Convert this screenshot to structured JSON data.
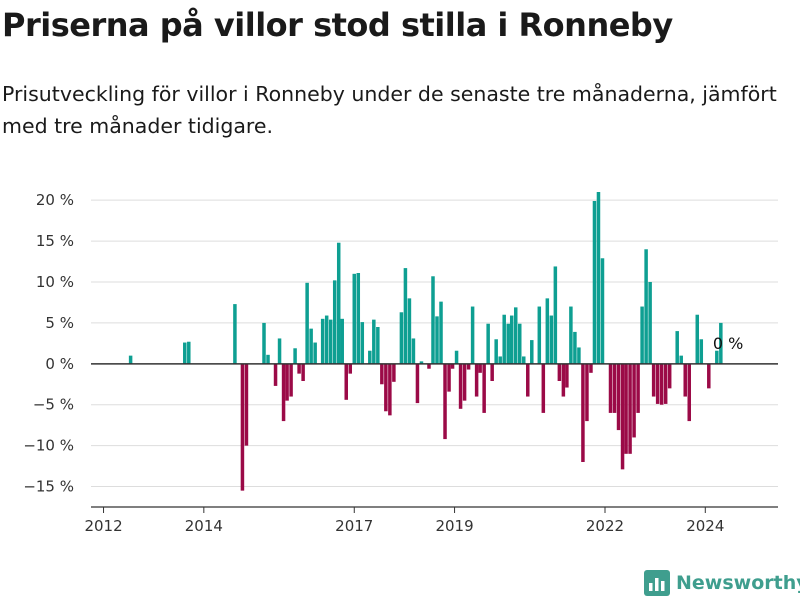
{
  "header": {
    "title": "Priserna på villor stod stilla i Ronneby",
    "subtitle": "Prisutveckling för villor i Ronneby under de senaste tre månaderna, jämfört med tre månader tidigare."
  },
  "brand": {
    "name": "Newsworthy",
    "icon": "bar-chart-logo-icon",
    "color": "#3f9e8e"
  },
  "chart_data": {
    "type": "bar",
    "ylim": [
      -17.5,
      21
    ],
    "yticks": [
      -15,
      -10,
      -5,
      0,
      5,
      10,
      15,
      20
    ],
    "ytick_labels": [
      "−15 %",
      "−10 %",
      "−5 %",
      "0 %",
      "5 %",
      "10 %",
      "15 %",
      "20 %"
    ],
    "xlim": [
      2011.75,
      2025.45
    ],
    "xticks": [
      2012,
      2014,
      2017,
      2019,
      2022,
      2024
    ],
    "xtick_labels": [
      "2012",
      "2014",
      "2017",
      "2019",
      "2022",
      "2024"
    ],
    "colors": {
      "positive": "#0e9f92",
      "negative": "#9b0a47"
    },
    "last_label": "0 %",
    "points": [
      {
        "x": 2012.54,
        "y": 1.0
      },
      {
        "x": 2013.62,
        "y": 2.6
      },
      {
        "x": 2013.7,
        "y": 2.7
      },
      {
        "x": 2014.62,
        "y": 7.3
      },
      {
        "x": 2014.77,
        "y": -15.5
      },
      {
        "x": 2014.85,
        "y": -10.0
      },
      {
        "x": 2015.2,
        "y": 5.0
      },
      {
        "x": 2015.28,
        "y": 1.1
      },
      {
        "x": 2015.43,
        "y": -2.7
      },
      {
        "x": 2015.51,
        "y": 3.1
      },
      {
        "x": 2015.59,
        "y": -7.0
      },
      {
        "x": 2015.66,
        "y": -4.5
      },
      {
        "x": 2015.74,
        "y": -4.0
      },
      {
        "x": 2015.82,
        "y": 1.9
      },
      {
        "x": 2015.9,
        "y": -1.2
      },
      {
        "x": 2015.98,
        "y": -2.1
      },
      {
        "x": 2016.06,
        "y": 9.9
      },
      {
        "x": 2016.14,
        "y": 4.3
      },
      {
        "x": 2016.22,
        "y": 2.6
      },
      {
        "x": 2016.37,
        "y": 5.5
      },
      {
        "x": 2016.45,
        "y": 5.9
      },
      {
        "x": 2016.53,
        "y": 5.4
      },
      {
        "x": 2016.61,
        "y": 10.2
      },
      {
        "x": 2016.69,
        "y": 14.8
      },
      {
        "x": 2016.76,
        "y": 5.5
      },
      {
        "x": 2016.84,
        "y": -4.4
      },
      {
        "x": 2016.92,
        "y": -1.2
      },
      {
        "x": 2017.0,
        "y": 11.0
      },
      {
        "x": 2017.08,
        "y": 11.1
      },
      {
        "x": 2017.16,
        "y": 5.1
      },
      {
        "x": 2017.31,
        "y": 1.6
      },
      {
        "x": 2017.39,
        "y": 5.4
      },
      {
        "x": 2017.47,
        "y": 4.5
      },
      {
        "x": 2017.55,
        "y": -2.5
      },
      {
        "x": 2017.63,
        "y": -5.8
      },
      {
        "x": 2017.71,
        "y": -6.3
      },
      {
        "x": 2017.79,
        "y": -2.2
      },
      {
        "x": 2017.94,
        "y": 6.3
      },
      {
        "x": 2018.02,
        "y": 11.7
      },
      {
        "x": 2018.1,
        "y": 8.0
      },
      {
        "x": 2018.18,
        "y": 3.1
      },
      {
        "x": 2018.26,
        "y": -4.8
      },
      {
        "x": 2018.34,
        "y": 0.3
      },
      {
        "x": 2018.49,
        "y": -0.6
      },
      {
        "x": 2018.57,
        "y": 10.7
      },
      {
        "x": 2018.65,
        "y": 5.8
      },
      {
        "x": 2018.73,
        "y": 7.6
      },
      {
        "x": 2018.81,
        "y": -9.2
      },
      {
        "x": 2018.89,
        "y": -3.4
      },
      {
        "x": 2018.96,
        "y": -0.6
      },
      {
        "x": 2019.04,
        "y": 1.6
      },
      {
        "x": 2019.12,
        "y": -5.5
      },
      {
        "x": 2019.2,
        "y": -4.5
      },
      {
        "x": 2019.28,
        "y": -0.7
      },
      {
        "x": 2019.36,
        "y": 7.0
      },
      {
        "x": 2019.44,
        "y": -4.0
      },
      {
        "x": 2019.51,
        "y": -1.1
      },
      {
        "x": 2019.59,
        "y": -6.0
      },
      {
        "x": 2019.67,
        "y": 4.9
      },
      {
        "x": 2019.75,
        "y": -2.1
      },
      {
        "x": 2019.83,
        "y": 3.0
      },
      {
        "x": 2019.91,
        "y": 0.9
      },
      {
        "x": 2019.99,
        "y": 6.0
      },
      {
        "x": 2020.07,
        "y": 4.9
      },
      {
        "x": 2020.14,
        "y": 5.9
      },
      {
        "x": 2020.22,
        "y": 6.9
      },
      {
        "x": 2020.3,
        "y": 4.9
      },
      {
        "x": 2020.38,
        "y": 0.9
      },
      {
        "x": 2020.46,
        "y": -4.0
      },
      {
        "x": 2020.54,
        "y": 2.9
      },
      {
        "x": 2020.69,
        "y": 7.0
      },
      {
        "x": 2020.77,
        "y": -6.0
      },
      {
        "x": 2020.85,
        "y": 8.0
      },
      {
        "x": 2020.93,
        "y": 5.9
      },
      {
        "x": 2021.01,
        "y": 11.9
      },
      {
        "x": 2021.09,
        "y": -2.1
      },
      {
        "x": 2021.17,
        "y": -4.0
      },
      {
        "x": 2021.24,
        "y": -2.9
      },
      {
        "x": 2021.32,
        "y": 7.0
      },
      {
        "x": 2021.4,
        "y": 3.9
      },
      {
        "x": 2021.48,
        "y": 2.0
      },
      {
        "x": 2021.56,
        "y": -12.0
      },
      {
        "x": 2021.64,
        "y": -7.0
      },
      {
        "x": 2021.72,
        "y": -1.1
      },
      {
        "x": 2021.79,
        "y": 19.9
      },
      {
        "x": 2021.87,
        "y": 21.0
      },
      {
        "x": 2021.95,
        "y": 12.9
      },
      {
        "x": 2022.11,
        "y": -6.0
      },
      {
        "x": 2022.19,
        "y": -6.0
      },
      {
        "x": 2022.27,
        "y": -8.1
      },
      {
        "x": 2022.35,
        "y": -12.9
      },
      {
        "x": 2022.42,
        "y": -11.0
      },
      {
        "x": 2022.5,
        "y": -11.0
      },
      {
        "x": 2022.58,
        "y": -9.0
      },
      {
        "x": 2022.66,
        "y": -6.0
      },
      {
        "x": 2022.74,
        "y": 7.0
      },
      {
        "x": 2022.82,
        "y": 14.0
      },
      {
        "x": 2022.9,
        "y": 10.0
      },
      {
        "x": 2022.97,
        "y": -4.0
      },
      {
        "x": 2023.05,
        "y": -4.9
      },
      {
        "x": 2023.13,
        "y": -5.0
      },
      {
        "x": 2023.21,
        "y": -4.9
      },
      {
        "x": 2023.29,
        "y": -3.0
      },
      {
        "x": 2023.44,
        "y": 4.0
      },
      {
        "x": 2023.52,
        "y": 1.0
      },
      {
        "x": 2023.6,
        "y": -4.0
      },
      {
        "x": 2023.68,
        "y": -7.0
      },
      {
        "x": 2023.84,
        "y": 6.0
      },
      {
        "x": 2023.92,
        "y": 3.0
      },
      {
        "x": 2024.07,
        "y": -3.0
      },
      {
        "x": 2024.23,
        "y": 1.6
      },
      {
        "x": 2024.31,
        "y": 5.0
      },
      {
        "x": 2024.39,
        "y": 0.0
      }
    ]
  }
}
